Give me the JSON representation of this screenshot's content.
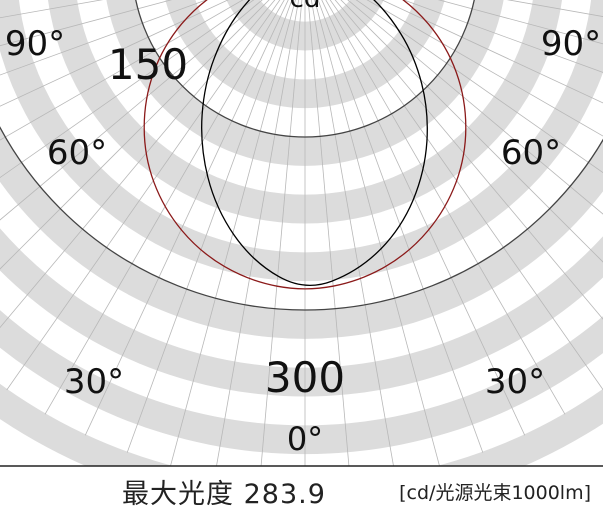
{
  "chart_data": {
    "type": "polar",
    "title": "cd",
    "radial_ticks": [
      150,
      300
    ],
    "angle_labels": {
      "left": [
        "90°",
        "60°",
        "30°"
      ],
      "right": [
        "90°",
        "60°",
        "30°"
      ],
      "bottom": "0°"
    },
    "series": [
      {
        "name": "",
        "color": "#000000",
        "angles_deg": [
          0,
          10,
          20,
          30,
          40,
          50,
          60,
          70,
          80,
          90
        ],
        "values_right": [
          284,
          270,
          244,
          208,
          167,
          124,
          82,
          45,
          14,
          0
        ],
        "values_left": [
          284,
          262,
          226,
          182,
          136,
          91,
          52,
          22,
          5,
          0
        ]
      },
      {
        "name": "",
        "color": "#8b1a1a",
        "angles_deg": [
          0,
          10,
          20,
          30,
          40,
          50,
          60,
          70,
          80,
          90
        ],
        "values_right": [
          284,
          279,
          266,
          245,
          217,
          182,
          142,
          97,
          49,
          0
        ],
        "values_left": [
          284,
          279,
          266,
          245,
          217,
          182,
          142,
          97,
          49,
          0
        ]
      }
    ]
  },
  "footer": {
    "max_label": "最大光度",
    "max_value": "283.9",
    "unit": "[cd/光源光束1000lm]"
  }
}
